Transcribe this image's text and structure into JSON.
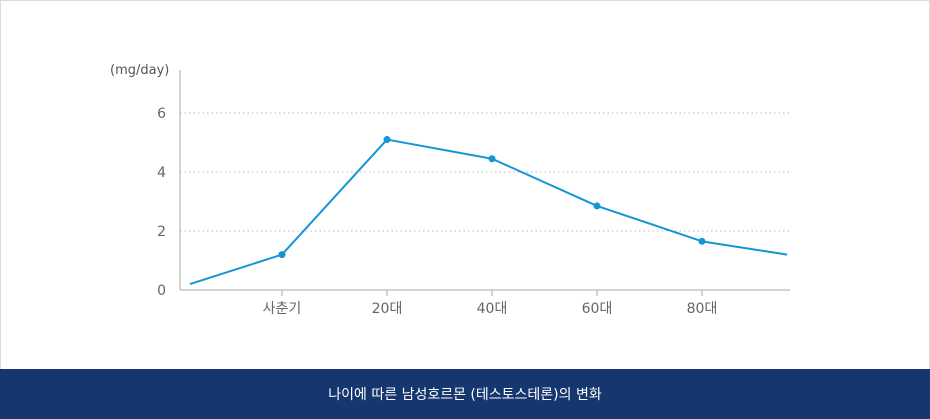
{
  "caption": "나이에 따른 남성호르몬 (테스토스테론)의 변화",
  "chart_data": {
    "type": "line",
    "ylabel": "(mg/day)",
    "xlabel": "",
    "ylim": [
      0,
      6
    ],
    "yticks": [
      0,
      2,
      4,
      6
    ],
    "grid": "horizontal-dotted",
    "categories": [
      "사춘기",
      "20대",
      "40대",
      "60대",
      "80대"
    ],
    "series": [
      {
        "start_value": 0.2,
        "values": [
          1.2,
          5.1,
          4.45,
          2.85,
          1.65
        ],
        "end_value": 1.2,
        "color": "#1496d6"
      }
    ]
  },
  "colors": {
    "line": "#1496d6",
    "grid": "#bbbbbb",
    "axis": "#aaaaaa",
    "caption_bg": "#15366f"
  }
}
